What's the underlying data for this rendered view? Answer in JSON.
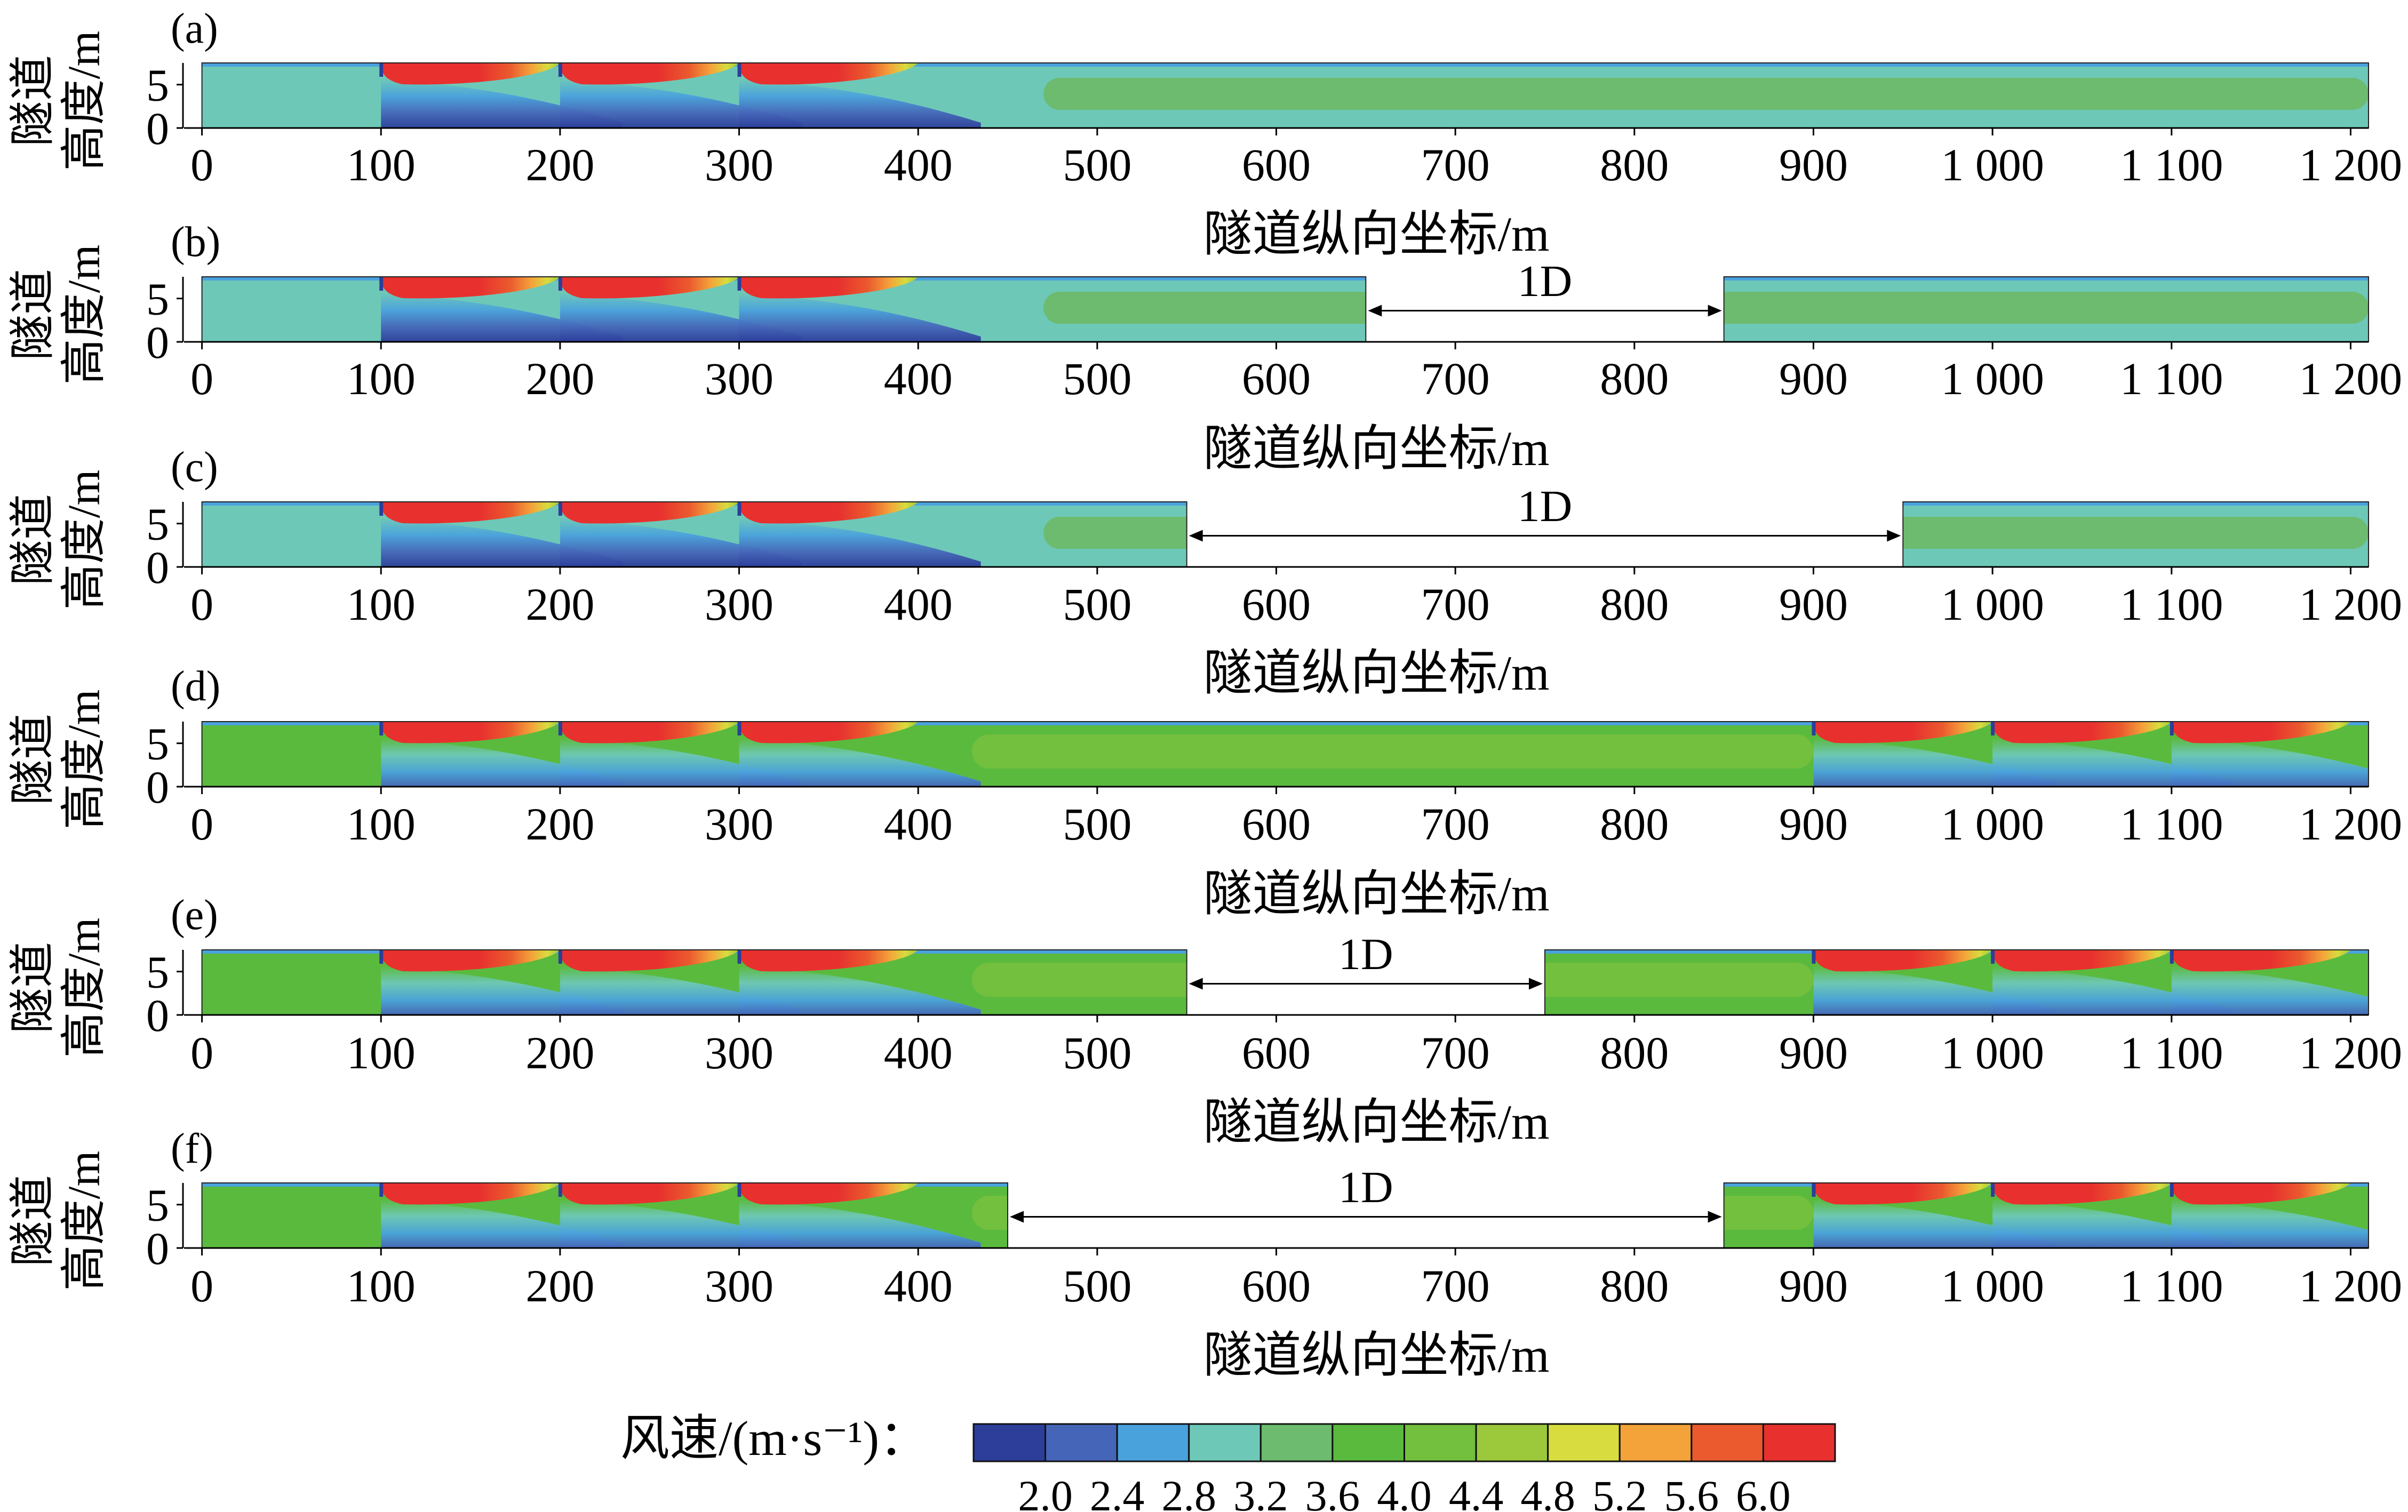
{
  "chart_data": {
    "type": "heatmap",
    "description_legend": {
      "title": "风速/(m·s⁻¹)：",
      "ticks": [
        "2.0",
        "2.4",
        "2.8",
        "3.2",
        "3.6",
        "4.0",
        "4.4",
        "4.8",
        "5.2",
        "5.6",
        "6.0"
      ],
      "colors": [
        "#2c3e9a",
        "#4565b8",
        "#4aa2dc",
        "#6ec8b8",
        "#6cbb6e",
        "#5aba3e",
        "#73bf3e",
        "#9cc83c",
        "#d8dc3e",
        "#f4a23a",
        "#ea5a2e",
        "#e8302e"
      ]
    },
    "axis": {
      "xlim": [
        0,
        1210
      ],
      "ylim": [
        0,
        7.5
      ],
      "y_ticks": [
        "0",
        "5"
      ],
      "x_ticks": [
        0,
        100,
        200,
        300,
        400,
        500,
        600,
        700,
        800,
        900,
        1000,
        1100,
        1200
      ],
      "x_tick_labels": [
        "0",
        "100",
        "200",
        "300",
        "400",
        "500",
        "600",
        "700",
        "800",
        "900",
        "1 000",
        "1 100",
        "1 200"
      ],
      "xlabel": "隧道纵向坐标/m",
      "ylabel_line1": "隧道",
      "ylabel_line2": "高度/m"
    },
    "panels": [
      {
        "label": "(a)",
        "segments": [
          [
            0,
            1210
          ]
        ],
        "gap": null,
        "fans": [
          100,
          200,
          300
        ],
        "profile": "a"
      },
      {
        "label": "(b)",
        "segments": [
          [
            0,
            650
          ],
          [
            850,
            1210
          ]
        ],
        "gap": {
          "from": 650,
          "to": 850,
          "label": "1D"
        },
        "fans": [
          100,
          200,
          300
        ],
        "profile": "a"
      },
      {
        "label": "(c)",
        "segments": [
          [
            0,
            550
          ],
          [
            950,
            1210
          ]
        ],
        "gap": {
          "from": 550,
          "to": 950,
          "label": "1D"
        },
        "fans": [
          100,
          200,
          300
        ],
        "profile": "a"
      },
      {
        "label": "(d)",
        "segments": [
          [
            0,
            1210
          ]
        ],
        "gap": null,
        "fans": [
          100,
          200,
          300,
          900,
          1000,
          1100
        ],
        "profile": "b"
      },
      {
        "label": "(e)",
        "segments": [
          [
            0,
            550
          ],
          [
            750,
            1210
          ]
        ],
        "gap": {
          "from": 550,
          "to": 750,
          "label": "1D"
        },
        "fans": [
          100,
          200,
          300,
          900,
          1000,
          1100
        ],
        "profile": "b"
      },
      {
        "label": "(f)",
        "segments": [
          [
            0,
            450
          ],
          [
            850,
            1210
          ]
        ],
        "gap": {
          "from": 450,
          "to": 850,
          "label": "1D"
        },
        "fans": [
          100,
          200,
          300,
          900,
          1000,
          1100
        ],
        "profile": "b"
      }
    ]
  }
}
